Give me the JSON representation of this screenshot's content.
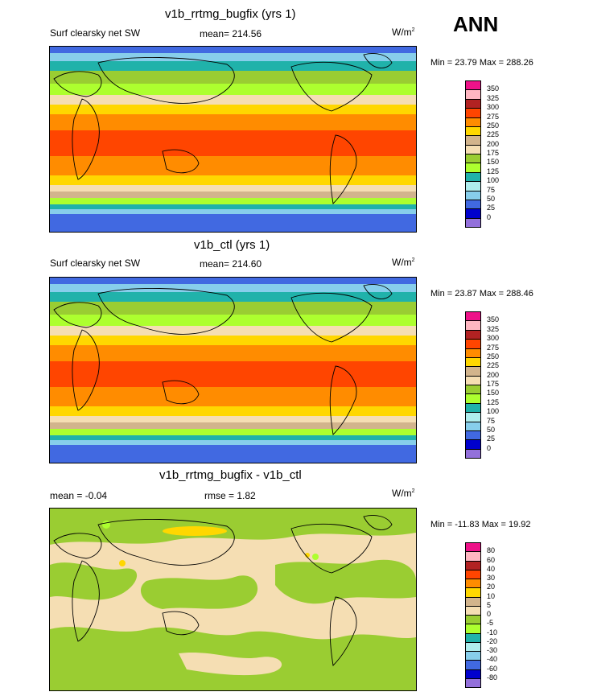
{
  "season": "ANN",
  "panels": [
    {
      "title": "v1b_rrtmg_bugfix (yrs 1)",
      "left_label": "Surf clearsky net SW",
      "center_label": "mean= 214.56",
      "units_base": "W/m",
      "units_sup": "2",
      "minmax": "Min =  23.79 Max = 288.26",
      "levels": [
        "350",
        "325",
        "300",
        "275",
        "250",
        "225",
        "200",
        "175",
        "150",
        "125",
        "100",
        "75",
        "50",
        "25",
        "0"
      ]
    },
    {
      "title": "v1b_ctl (yrs 1)",
      "left_label": "Surf clearsky net SW",
      "center_label": "mean= 214.60",
      "units_base": "W/m",
      "units_sup": "2",
      "minmax": "Min =  23.87 Max = 288.46",
      "levels": [
        "350",
        "325",
        "300",
        "275",
        "250",
        "225",
        "200",
        "175",
        "150",
        "125",
        "100",
        "75",
        "50",
        "25",
        "0"
      ]
    },
    {
      "title": "v1b_rrtmg_bugfix - v1b_ctl",
      "left_label": "mean =  -0.04",
      "center_label": "rmse =    1.82",
      "units_base": "W/m",
      "units_sup": "2",
      "minmax": "Min = -11.83 Max =  19.92",
      "levels": [
        "80",
        "60",
        "40",
        "30",
        "20",
        "10",
        "5",
        "0",
        "-5",
        "-10",
        "-20",
        "-30",
        "-40",
        "-60",
        "-80"
      ]
    }
  ],
  "colors": {
    "palette": [
      "#ee1289",
      "#ffb6c1",
      "#b22222",
      "#ff4500",
      "#ff8c00",
      "#ffd700",
      "#d2b48c",
      "#f5deb3",
      "#9acd32",
      "#adff2f",
      "#20b2aa",
      "#afeeee",
      "#87ceeb",
      "#4169e1",
      "#0000cd",
      "#9370db"
    ]
  }
}
